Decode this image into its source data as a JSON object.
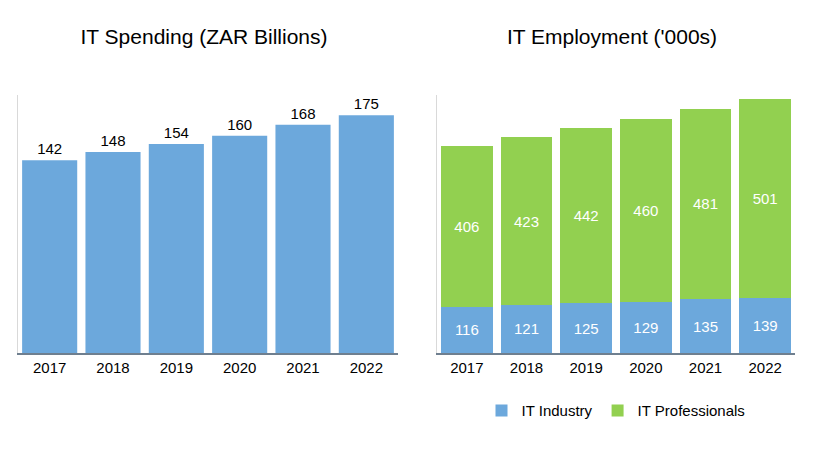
{
  "chart_data": [
    {
      "type": "bar",
      "title": "IT Spending (ZAR Billions)",
      "categories": [
        "2017",
        "2018",
        "2019",
        "2020",
        "2021",
        "2022"
      ],
      "values": [
        142,
        148,
        154,
        160,
        168,
        175
      ],
      "color": "#6ca8dc",
      "ylim": [
        0,
        190
      ],
      "grid": false,
      "data_labels": true,
      "tick_labels": "x"
    },
    {
      "type": "bar",
      "title": "IT Employment ('000s)",
      "categories": [
        "2017",
        "2018",
        "2019",
        "2020",
        "2021",
        "2022"
      ],
      "series": [
        {
          "name": "IT Industry",
          "color": "#6ca8dc",
          "values": [
            116,
            121,
            125,
            129,
            135,
            139
          ]
        },
        {
          "name": "IT Professionals",
          "color": "#92d050",
          "values": [
            406,
            423,
            442,
            460,
            481,
            501
          ]
        }
      ],
      "ylim": [
        0,
        650
      ],
      "stacked": true,
      "grid": false,
      "data_labels": true,
      "tick_labels": "x",
      "legend": "bottom"
    }
  ]
}
